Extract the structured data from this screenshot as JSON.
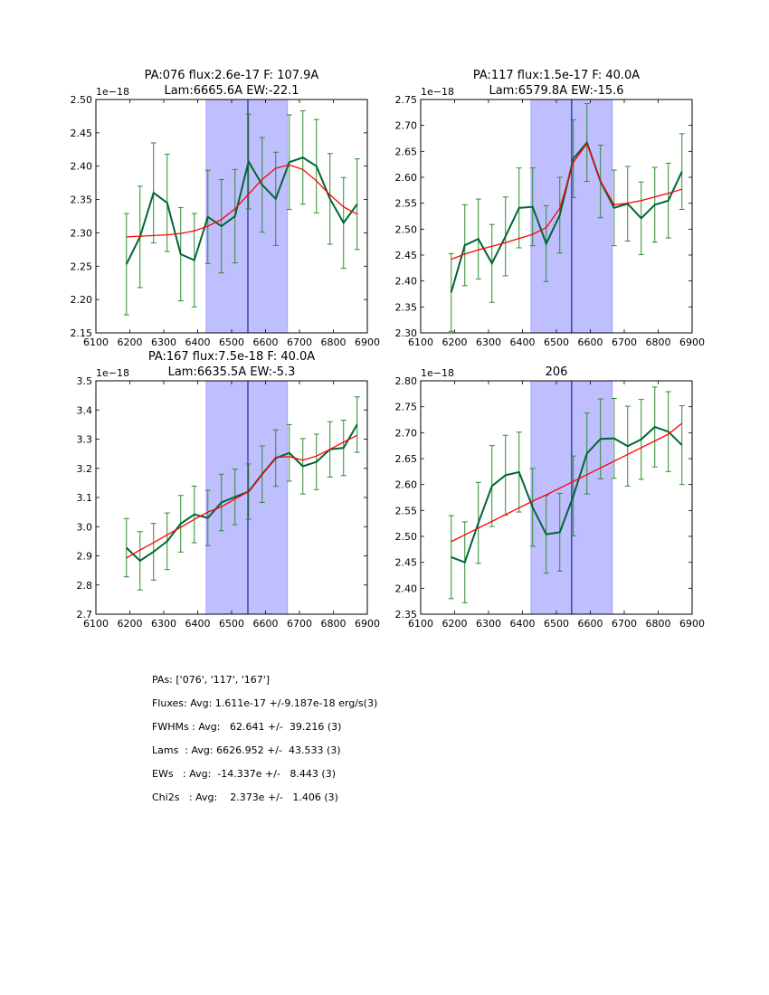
{
  "chart_data": [
    {
      "type": "line",
      "title_lines": [
        "PA:076 flux:2.6e-17 F: 107.9A",
        "Lam:6665.6A EW:-22.1"
      ],
      "scale_label": "1e−18",
      "xlim": [
        6100,
        6900
      ],
      "ylim": [
        2.15,
        2.5
      ],
      "xticks": [
        6100,
        6200,
        6300,
        6400,
        6500,
        6600,
        6700,
        6800,
        6900
      ],
      "xtick_labels": [
        "6100",
        "6200",
        "6300",
        "6400",
        "6500",
        "6600",
        "6700",
        "6800",
        "6900"
      ],
      "yticks": [
        2.15,
        2.2,
        2.25,
        2.3,
        2.35,
        2.4,
        2.45,
        2.5
      ],
      "ytick_labels": [
        "2.15",
        "2.20",
        "2.25",
        "2.30",
        "2.35",
        "2.40",
        "2.45",
        "2.50"
      ],
      "band": [
        6425,
        6665
      ],
      "vline": 6548,
      "x": [
        6190,
        6230,
        6270,
        6310,
        6350,
        6390,
        6430,
        6470,
        6510,
        6550,
        6590,
        6630,
        6670,
        6710,
        6750,
        6790,
        6830,
        6870
      ],
      "data": [
        2.253,
        2.294,
        2.36,
        2.345,
        2.268,
        2.259,
        2.324,
        2.31,
        2.325,
        2.407,
        2.372,
        2.351,
        2.406,
        2.413,
        2.4,
        2.351,
        2.315,
        2.343
      ],
      "err": [
        0.076,
        0.076,
        0.075,
        0.073,
        0.07,
        0.07,
        0.07,
        0.07,
        0.07,
        0.071,
        0.071,
        0.07,
        0.071,
        0.07,
        0.07,
        0.068,
        0.068,
        0.068
      ],
      "model": [
        2.294,
        2.295,
        2.296,
        2.297,
        2.299,
        2.303,
        2.31,
        2.32,
        2.336,
        2.358,
        2.38,
        2.397,
        2.402,
        2.395,
        2.378,
        2.357,
        2.339,
        2.328
      ],
      "colors": {
        "data": "#006633",
        "err": "#2e8b2e",
        "model": "#ff0000",
        "band": "#bfbfff",
        "vline": "#000080"
      }
    },
    {
      "type": "line",
      "title_lines": [
        "PA:117 flux:1.5e-17 F: 40.0A",
        "Lam:6579.8A EW:-15.6"
      ],
      "scale_label": "1e−18",
      "xlim": [
        6100,
        6900
      ],
      "ylim": [
        2.3,
        2.75
      ],
      "xticks": [
        6100,
        6200,
        6300,
        6400,
        6500,
        6600,
        6700,
        6800,
        6900
      ],
      "xtick_labels": [
        "6100",
        "6200",
        "6300",
        "6400",
        "6500",
        "6600",
        "6700",
        "6800",
        "6900"
      ],
      "yticks": [
        2.3,
        2.35,
        2.4,
        2.45,
        2.5,
        2.55,
        2.6,
        2.65,
        2.7,
        2.75
      ],
      "ytick_labels": [
        "2.30",
        "2.35",
        "2.40",
        "2.45",
        "2.50",
        "2.55",
        "2.60",
        "2.65",
        "2.70",
        "2.75"
      ],
      "band": [
        6425,
        6665
      ],
      "vline": 6545,
      "x": [
        6190,
        6230,
        6270,
        6310,
        6350,
        6390,
        6430,
        6470,
        6510,
        6550,
        6590,
        6630,
        6670,
        6710,
        6750,
        6790,
        6830,
        6870
      ],
      "data": [
        2.378,
        2.469,
        2.481,
        2.434,
        2.486,
        2.541,
        2.543,
        2.472,
        2.527,
        2.636,
        2.667,
        2.592,
        2.541,
        2.549,
        2.521,
        2.547,
        2.555,
        2.611
      ],
      "err": [
        0.075,
        0.078,
        0.077,
        0.075,
        0.076,
        0.077,
        0.075,
        0.073,
        0.073,
        0.075,
        0.075,
        0.07,
        0.073,
        0.072,
        0.07,
        0.072,
        0.072,
        0.073
      ],
      "model": [
        2.442,
        2.452,
        2.46,
        2.467,
        2.474,
        2.482,
        2.49,
        2.503,
        2.54,
        2.629,
        2.665,
        2.593,
        2.547,
        2.55,
        2.555,
        2.562,
        2.569,
        2.577
      ],
      "colors": {
        "data": "#006633",
        "err": "#2e8b2e",
        "model": "#ff0000",
        "band": "#bfbfff",
        "vline": "#000080"
      }
    },
    {
      "type": "line",
      "title_lines": [
        "PA:167 flux:7.5e-18 F: 40.0A",
        "Lam:6635.5A EW:-5.3"
      ],
      "scale_label": "1e−18",
      "xlim": [
        6100,
        6900
      ],
      "ylim": [
        2.7,
        3.5
      ],
      "xticks": [
        6100,
        6200,
        6300,
        6400,
        6500,
        6600,
        6700,
        6800,
        6900
      ],
      "xtick_labels": [
        "6100",
        "6200",
        "6300",
        "6400",
        "6500",
        "6600",
        "6700",
        "6800",
        "6900"
      ],
      "yticks": [
        2.7,
        2.8,
        2.9,
        3.0,
        3.1,
        3.2,
        3.3,
        3.4,
        3.5
      ],
      "ytick_labels": [
        "2.7",
        "2.8",
        "2.9",
        "3.0",
        "3.1",
        "3.2",
        "3.3",
        "3.4",
        "3.5"
      ],
      "band": [
        6425,
        6665
      ],
      "vline": 6548,
      "x": [
        6190,
        6230,
        6270,
        6310,
        6350,
        6390,
        6430,
        6470,
        6510,
        6550,
        6590,
        6630,
        6670,
        6710,
        6750,
        6790,
        6830,
        6870
      ],
      "data": [
        2.928,
        2.883,
        2.914,
        2.95,
        3.01,
        3.042,
        3.03,
        3.083,
        3.102,
        3.12,
        3.18,
        3.235,
        3.253,
        3.207,
        3.222,
        3.265,
        3.27,
        3.35
      ],
      "err": [
        0.1,
        0.1,
        0.097,
        0.097,
        0.097,
        0.097,
        0.095,
        0.097,
        0.095,
        0.095,
        0.097,
        0.097,
        0.097,
        0.095,
        0.095,
        0.095,
        0.095,
        0.095
      ],
      "model": [
        2.893,
        2.92,
        2.945,
        2.972,
        2.998,
        3.025,
        3.05,
        3.068,
        3.095,
        3.12,
        3.178,
        3.238,
        3.24,
        3.228,
        3.242,
        3.265,
        3.29,
        3.313
      ],
      "colors": {
        "data": "#006633",
        "err": "#2e8b2e",
        "model": "#ff0000",
        "band": "#bfbfff",
        "vline": "#000080"
      }
    },
    {
      "type": "line",
      "title_lines": [
        "206"
      ],
      "scale_label": "1e−18",
      "xlim": [
        6100,
        6900
      ],
      "ylim": [
        2.35,
        2.8
      ],
      "xticks": [
        6100,
        6200,
        6300,
        6400,
        6500,
        6600,
        6700,
        6800,
        6900
      ],
      "xtick_labels": [
        "6100",
        "6200",
        "6300",
        "6400",
        "6500",
        "6600",
        "6700",
        "6800",
        "6900"
      ],
      "yticks": [
        2.35,
        2.4,
        2.45,
        2.5,
        2.55,
        2.6,
        2.65,
        2.7,
        2.75,
        2.8
      ],
      "ytick_labels": [
        "2.35",
        "2.40",
        "2.45",
        "2.50",
        "2.55",
        "2.60",
        "2.65",
        "2.70",
        "2.75",
        "2.80"
      ],
      "band": [
        6425,
        6665
      ],
      "vline": 6545,
      "x": [
        6190,
        6230,
        6270,
        6310,
        6350,
        6390,
        6430,
        6470,
        6510,
        6550,
        6590,
        6630,
        6670,
        6710,
        6750,
        6790,
        6830,
        6870
      ],
      "data": [
        2.46,
        2.45,
        2.526,
        2.597,
        2.618,
        2.624,
        2.556,
        2.504,
        2.508,
        2.578,
        2.66,
        2.688,
        2.689,
        2.674,
        2.687,
        2.711,
        2.702,
        2.676
      ],
      "err": [
        0.08,
        0.078,
        0.078,
        0.078,
        0.077,
        0.077,
        0.075,
        0.075,
        0.075,
        0.077,
        0.078,
        0.077,
        0.077,
        0.077,
        0.077,
        0.077,
        0.077,
        0.076
      ],
      "model": [
        2.49,
        2.503,
        2.516,
        2.529,
        2.542,
        2.555,
        2.568,
        2.58,
        2.593,
        2.606,
        2.619,
        2.632,
        2.645,
        2.658,
        2.671,
        2.684,
        2.697,
        2.718
      ],
      "colors": {
        "data": "#006633",
        "err": "#2e8b2e",
        "model": "#ff0000",
        "band": "#bfbfff",
        "vline": "#000080"
      }
    }
  ],
  "summary": [
    "PAs: ['076', '117', '167']",
    "Fluxes: Avg: 1.611e-17 +/-9.187e-18 erg/s(3)",
    "FWHMs : Avg:   62.641 +/-  39.216 (3)",
    "Lams  : Avg: 6626.952 +/-  43.533 (3)",
    "EWs   : Avg:  -14.337e +/-   8.443 (3)",
    "Chi2s   : Avg:    2.373e +/-   1.406 (3)"
  ]
}
